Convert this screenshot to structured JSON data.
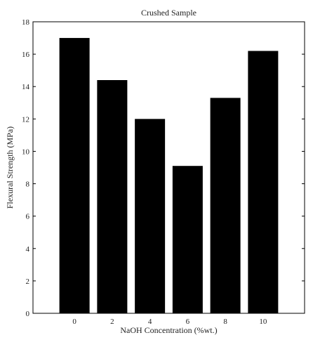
{
  "chart_data": {
    "type": "bar",
    "title": "Crushed Sample",
    "xlabel": "NaOH Concentration (%wt.)",
    "ylabel": "Flexural Strength (MPa)",
    "categories": [
      "0",
      "2",
      "4",
      "6",
      "8",
      "10"
    ],
    "values": [
      17.0,
      14.4,
      12.0,
      9.1,
      13.3,
      16.2
    ],
    "ylim": [
      0,
      18
    ],
    "yticks": [
      0,
      2,
      4,
      6,
      8,
      10,
      12,
      14,
      16,
      18
    ],
    "grid": false,
    "bar_color": "#000000",
    "axis_color": "#000000"
  }
}
